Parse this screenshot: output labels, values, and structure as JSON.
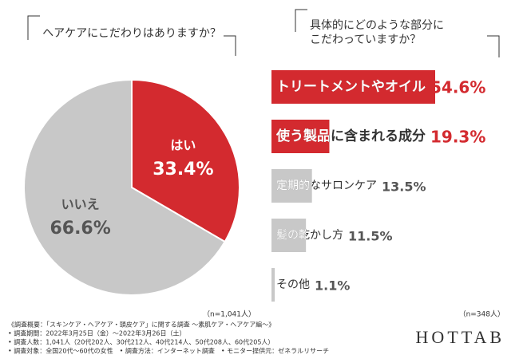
{
  "charts": [
    {
      "type": "pie",
      "title": "ヘアケアにこだわりはありますか？",
      "categories": [
        "はい",
        "いいえ"
      ],
      "values": [
        33.4,
        66.6
      ],
      "value_labels": [
        "33.4%",
        "66.6%"
      ],
      "colors": [
        "#d32a2f",
        "#c8c8c8"
      ],
      "note": "（n=1,041人）"
    },
    {
      "type": "bar",
      "title": [
        "具体的にどのような部分に",
        "こだわっていますか？"
      ],
      "categories": [
        "トリートメントやオイル",
        "使う製品に含まれる成分",
        "定期的なサロンケア",
        "髪の乾かし方",
        "その他"
      ],
      "values": [
        54.6,
        19.3,
        13.5,
        11.5,
        1.1
      ],
      "value_labels": [
        "54.6%",
        "19.3%",
        "13.5%",
        "11.5%",
        "1.1%"
      ],
      "colors": [
        "#d32a2f",
        "#d32a2f",
        "#c8c8c8",
        "#c8c8c8",
        "#c8c8c8"
      ],
      "note": "（n=348人）"
    }
  ],
  "footer": {
    "notes": [
      "《調査概要：「スキンケア・ヘアケア・頭皮ケア」に関する調査 ～素肌ケア・ヘアケア編～》",
      "• 調査期間：2022年3月25日（金）～2022年3月26日（土）",
      "• 調査人数：1,041人（20代202人、30代212人、40代214人、50代208人、60代205人）",
      "• 調査対象：全国20代～60代の女性　• 調査方法：インターネット調査　• モニター提供元：ゼネラルリサーチ"
    ],
    "brand": "HOTTAB"
  }
}
